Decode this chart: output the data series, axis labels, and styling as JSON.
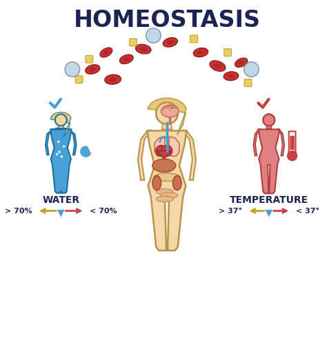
{
  "title": "HOMEOSTASIS",
  "title_fontsize": 24,
  "title_color": "#1e2355",
  "bg_color": "#ffffff",
  "water_label": "WATER",
  "temp_label": "TEMPERATURE",
  "water_arrow_left_text": "> 70%",
  "water_arrow_right_text": "< 70%",
  "temp_arrow_left_text": "> 37°",
  "temp_arrow_right_text": "< 37°",
  "blue_body_color": "#4a9fd4",
  "blue_body_outline": "#1e6fa0",
  "skin_color": "#f5d5a0",
  "hair_color": "#e8c870",
  "red_body_color": "#e08080",
  "red_body_outline": "#b04040",
  "main_body_fill": "#f5d8a8",
  "main_body_outline": "#b8924a",
  "check_blue": "#4a9fd4",
  "check_red": "#c04040",
  "arrow_gold": "#c8a020",
  "arrow_red": "#d04040",
  "arrow_blue_center": "#4a9fd4",
  "label_fontsize": 10,
  "label_color": "#1e2355",
  "arrow_text_fontsize": 8
}
